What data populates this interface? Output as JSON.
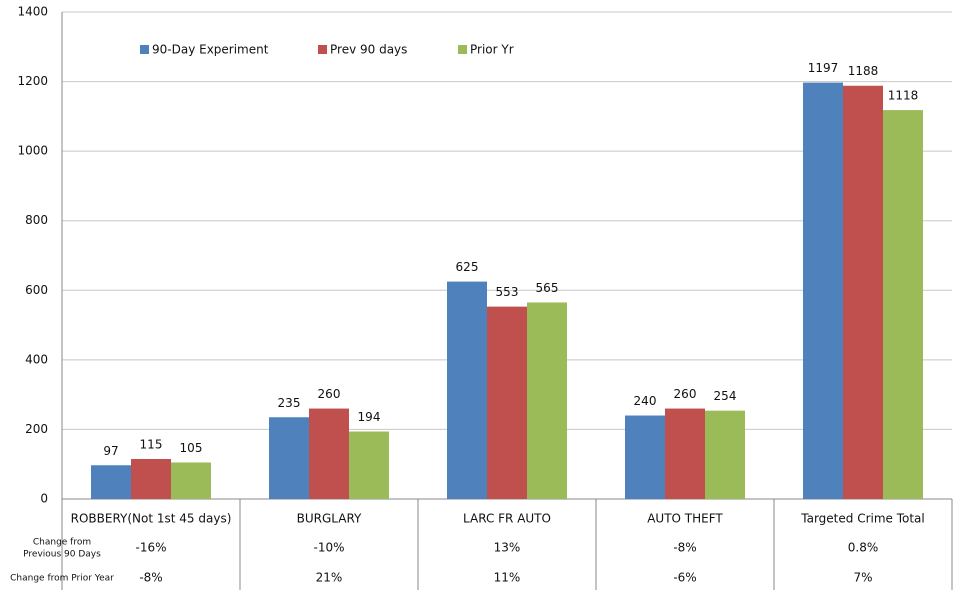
{
  "chart_data": {
    "type": "bar",
    "categories": [
      "ROBBERY(Not 1st 45 days)",
      "BURGLARY",
      "LARC FR AUTO",
      "AUTO THEFT",
      "Targeted Crime Total"
    ],
    "series": [
      {
        "name": "90-Day Experiment",
        "color": "#4f81bd",
        "values": [
          97,
          235,
          625,
          240,
          1197
        ]
      },
      {
        "name": "Prev 90 days",
        "color": "#c0504d",
        "values": [
          115,
          260,
          553,
          260,
          1188
        ]
      },
      {
        "name": "Prior Yr",
        "color": "#9bbb59",
        "values": [
          105,
          194,
          565,
          254,
          1118
        ]
      }
    ],
    "ylim": [
      0,
      1400
    ],
    "yticks": [
      0,
      200,
      400,
      600,
      800,
      1000,
      1200,
      1400
    ],
    "grid": true,
    "data_table": [
      {
        "label_lines": [
          "Change from",
          "Previous 90 Days"
        ],
        "values": [
          "-16%",
          "-10%",
          "13%",
          "-8%",
          "0.8%"
        ]
      },
      {
        "label_lines": [
          "Change from Prior Year"
        ],
        "values": [
          "-8%",
          "21%",
          "11%",
          "-6%",
          "7%"
        ]
      }
    ]
  }
}
